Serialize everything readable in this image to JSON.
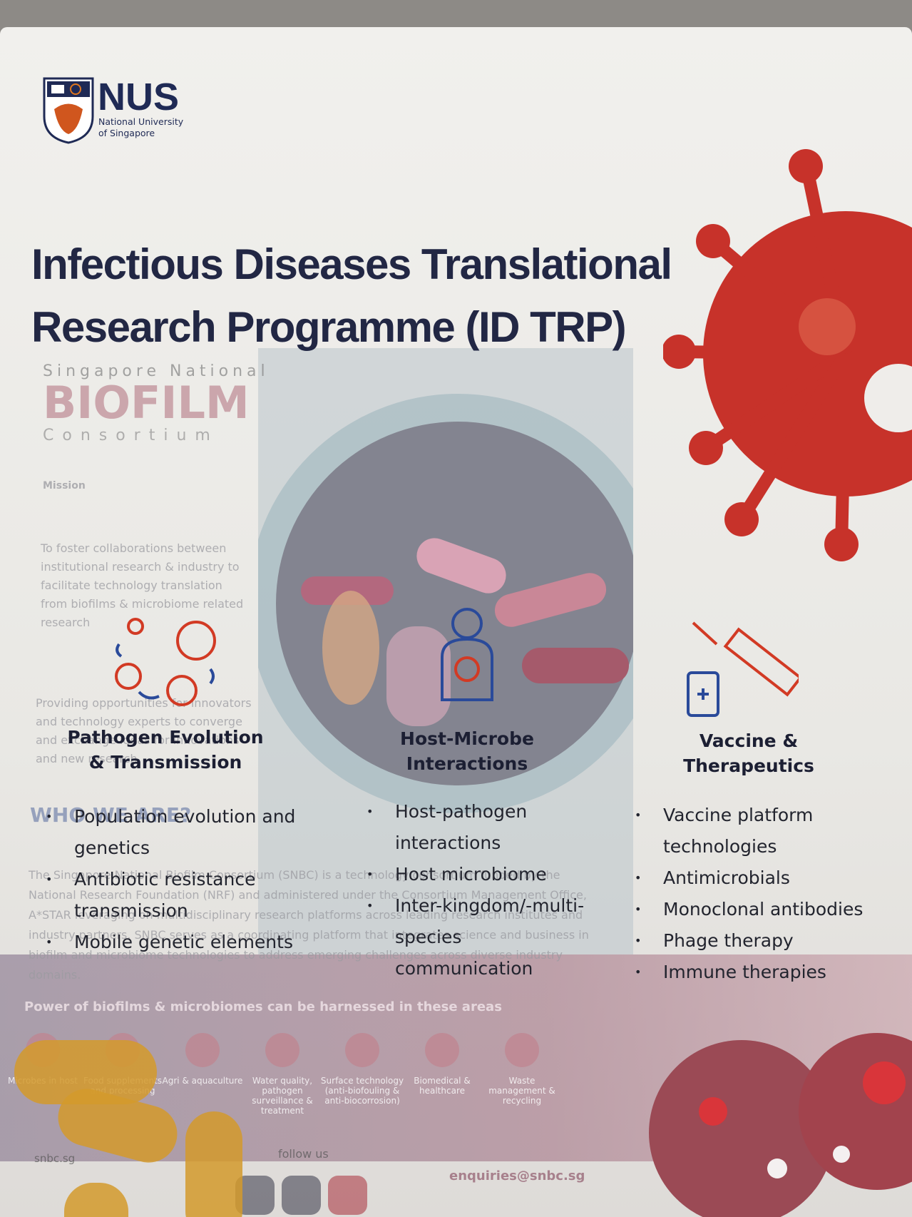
{
  "logo": {
    "name": "NUS",
    "subtitle_lines": [
      "National University",
      "of Singapore"
    ]
  },
  "title_lines": [
    "Infectious Diseases Translational",
    "Research Programme (ID TRP)"
  ],
  "columns": [
    {
      "heading_lines": [
        "Pathogen Evolution",
        "& Transmission"
      ],
      "items": [
        "Population evolution and genetics",
        "Antibiotic resistance transmission",
        "Mobile genetic elements"
      ]
    },
    {
      "heading_lines": [
        "Host-Microbe",
        "Interactions"
      ],
      "items": [
        "Host-pathogen interactions",
        "Host microbiome",
        "Inter-kingdom/-multi-species communication"
      ]
    },
    {
      "heading_lines": [
        "Vaccine &",
        "Therapeutics"
      ],
      "items": [
        "Vaccine platform technologies",
        "Antimicrobials",
        "Monoclonal antibodies",
        "Phage therapy",
        "Immune therapies"
      ]
    }
  ],
  "background_poster": {
    "brand_lines": [
      "Singapore National",
      "BIOFILM",
      "Consortium"
    ],
    "mission_heading": "Mission",
    "mission_text": "To foster collaborations between institutional research & industry to facilitate technology translation from biofilms & microbiome related research",
    "providing_text": "Providing opportunities for innovators and technology experts to converge and exchange ideas for innovations and new research",
    "who_heading": "WHO WE ARE?",
    "who_text": "The Singapore National Biofilm Consortium (SNBC) is a technology consortium funded by the National Research Foundation (NRF) and administered under the Consortium Management Office, A*STAR leveraging on multidisciplinary research platforms across leading research institutes and industry partners. SNBC serves as a coordinating platform that integrates science and business in biofilm and microbiome technologies to address emerging challenges across diverse industry domains.",
    "areas_heading": "Power of biofilms & microbiomes can be harnessed in these areas",
    "areas": [
      "Microbes in host",
      "Food supplements and processing",
      "Agri & aquaculture",
      "Water quality, pathogen surveillance & treatment",
      "Surface technology (anti-biofouling & anti-biocorrosion)",
      "Biomedical & healthcare",
      "Waste management & recycling"
    ],
    "website": "snbc.sg",
    "follow": "follow us",
    "email": "enquiries@snbc.sg"
  }
}
